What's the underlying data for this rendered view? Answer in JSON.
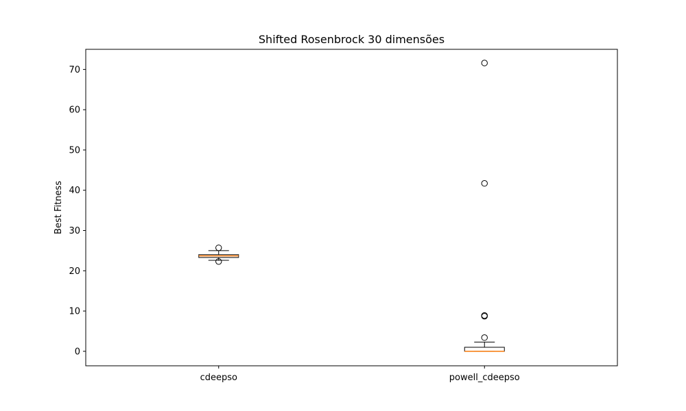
{
  "chart_data": {
    "type": "boxplot",
    "title": "Shifted Rosenbrock 30 dimensões",
    "xlabel": "",
    "ylabel": "Best Fitness",
    "ylim": [
      -3.6,
      75.0
    ],
    "yticks": [
      0,
      10,
      20,
      30,
      40,
      50,
      60,
      70
    ],
    "categories": [
      "cdeepso",
      "powell_cdeepso"
    ],
    "grid": false,
    "boxes": [
      {
        "category": "cdeepso",
        "whisker_low": 22.6,
        "q1": 23.3,
        "median": 23.7,
        "q3": 24.0,
        "whisker_high": 25.0,
        "outliers": [
          25.7,
          22.3
        ]
      },
      {
        "category": "powell_cdeepso",
        "whisker_low": 0.0,
        "q1": 0.0,
        "median": 0.0,
        "q3": 1.0,
        "whisker_high": 2.3,
        "outliers": [
          71.6,
          41.7,
          8.9,
          8.7,
          3.4
        ]
      }
    ],
    "colors": {
      "box": "#000000",
      "median": "#ff7f0e",
      "outlier": "#000000"
    }
  }
}
